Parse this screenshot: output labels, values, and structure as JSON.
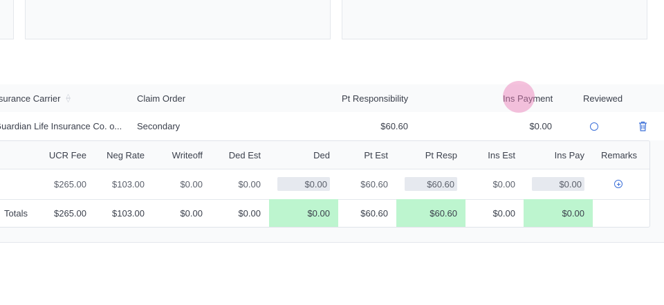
{
  "claims_table": {
    "headers": {
      "carrier": "Insurance Carrier",
      "claim_order": "Claim Order",
      "pt_responsibility": "Pt Responsibility",
      "ins_payment": "Ins Payment",
      "reviewed": "Reviewed"
    },
    "row": {
      "carrier": "Guardian Life Insurance Co. o...",
      "claim_order": "Secondary",
      "pt_responsibility": "$60.60",
      "ins_payment": "$0.00"
    }
  },
  "procedure_table": {
    "headers": {
      "ucr_fee": "UCR Fee",
      "neg_rate": "Neg Rate",
      "writeoff": "Writeoff",
      "ded_est": "Ded Est",
      "ded": "Ded",
      "pt_est": "Pt Est",
      "pt_resp": "Pt Resp",
      "ins_est": "Ins Est",
      "ins_pay": "Ins Pay",
      "remarks": "Remarks"
    },
    "data_row": {
      "ucr_fee": "$265.00",
      "neg_rate": "$103.00",
      "writeoff": "$0.00",
      "ded_est": "$0.00",
      "ded": "$0.00",
      "pt_est": "$60.60",
      "pt_resp": "$60.60",
      "ins_est": "$0.00",
      "ins_pay": "$0.00"
    },
    "totals_row": {
      "label": "Totals",
      "ucr_fee": "$265.00",
      "neg_rate": "$103.00",
      "writeoff": "$0.00",
      "ded_est": "$0.00",
      "ded": "$0.00",
      "pt_est": "$60.60",
      "pt_resp": "$60.60",
      "ins_est": "$0.00",
      "ins_pay": "$0.00"
    }
  },
  "icons": {
    "sort": "sort-icon",
    "reviewed": "circle-icon",
    "delete": "trash-icon",
    "add_remark": "plus-circle-icon"
  },
  "colors": {
    "accent": "#3b6fd8",
    "total_highlight": "#bdf5cf",
    "input_bg": "#e6e9ef"
  }
}
